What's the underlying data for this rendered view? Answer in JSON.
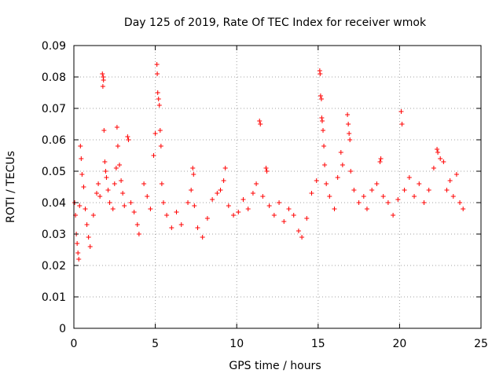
{
  "chart_data": {
    "type": "scatter",
    "title": "Day 125 of 2019, Rate Of TEC Index for receiver wmok",
    "xlabel": "GPS time / hours",
    "ylabel": "ROTI / TECUs",
    "xlim": [
      0,
      25
    ],
    "ylim": [
      0,
      0.09
    ],
    "xticks": [
      0,
      5,
      10,
      15,
      20,
      25
    ],
    "yticks": [
      0,
      0.01,
      0.02,
      0.03,
      0.04,
      0.05,
      0.06,
      0.07,
      0.08,
      0.09
    ],
    "xtick_labels": [
      "0",
      "5",
      "10",
      "15",
      "20",
      "25"
    ],
    "ytick_labels": [
      "0",
      "0.01",
      "0.02",
      "0.03",
      "0.04",
      "0.05",
      "0.06",
      "0.07",
      "0.08",
      "0.09"
    ],
    "grid": true,
    "marker": "plus",
    "marker_color": "#ff0000",
    "series": [
      {
        "name": "ROTI",
        "points": [
          [
            0.05,
            0.04
          ],
          [
            0.1,
            0.036
          ],
          [
            0.15,
            0.03
          ],
          [
            0.2,
            0.027
          ],
          [
            0.25,
            0.024
          ],
          [
            0.3,
            0.022
          ],
          [
            0.35,
            0.039
          ],
          [
            0.4,
            0.058
          ],
          [
            0.45,
            0.054
          ],
          [
            0.5,
            0.049
          ],
          [
            0.6,
            0.045
          ],
          [
            0.7,
            0.038
          ],
          [
            0.8,
            0.033
          ],
          [
            0.9,
            0.029
          ],
          [
            1.0,
            0.026
          ],
          [
            1.2,
            0.036
          ],
          [
            1.4,
            0.043
          ],
          [
            1.5,
            0.046
          ],
          [
            1.6,
            0.042
          ],
          [
            1.75,
            0.081
          ],
          [
            1.8,
            0.08
          ],
          [
            1.82,
            0.079
          ],
          [
            1.78,
            0.077
          ],
          [
            1.85,
            0.063
          ],
          [
            1.9,
            0.053
          ],
          [
            1.95,
            0.05
          ],
          [
            2.0,
            0.048
          ],
          [
            2.1,
            0.044
          ],
          [
            2.2,
            0.04
          ],
          [
            2.4,
            0.038
          ],
          [
            2.5,
            0.046
          ],
          [
            2.6,
            0.051
          ],
          [
            2.65,
            0.064
          ],
          [
            2.7,
            0.058
          ],
          [
            2.8,
            0.052
          ],
          [
            2.9,
            0.047
          ],
          [
            3.0,
            0.043
          ],
          [
            3.1,
            0.039
          ],
          [
            3.3,
            0.061
          ],
          [
            3.35,
            0.06
          ],
          [
            3.5,
            0.04
          ],
          [
            3.7,
            0.037
          ],
          [
            3.9,
            0.033
          ],
          [
            4.0,
            0.03
          ],
          [
            4.3,
            0.046
          ],
          [
            4.5,
            0.042
          ],
          [
            4.7,
            0.038
          ],
          [
            4.9,
            0.055
          ],
          [
            5.0,
            0.062
          ],
          [
            5.1,
            0.084
          ],
          [
            5.12,
            0.081
          ],
          [
            5.15,
            0.075
          ],
          [
            5.2,
            0.073
          ],
          [
            5.25,
            0.071
          ],
          [
            5.3,
            0.063
          ],
          [
            5.35,
            0.058
          ],
          [
            5.4,
            0.046
          ],
          [
            5.5,
            0.04
          ],
          [
            5.7,
            0.036
          ],
          [
            6.0,
            0.032
          ],
          [
            6.3,
            0.037
          ],
          [
            6.6,
            0.033
          ],
          [
            7.0,
            0.04
          ],
          [
            7.2,
            0.044
          ],
          [
            7.3,
            0.051
          ],
          [
            7.35,
            0.049
          ],
          [
            7.4,
            0.039
          ],
          [
            7.6,
            0.032
          ],
          [
            7.9,
            0.029
          ],
          [
            8.2,
            0.035
          ],
          [
            8.5,
            0.041
          ],
          [
            8.8,
            0.043
          ],
          [
            9.0,
            0.044
          ],
          [
            9.2,
            0.047
          ],
          [
            9.3,
            0.051
          ],
          [
            9.5,
            0.039
          ],
          [
            9.8,
            0.036
          ],
          [
            10.1,
            0.037
          ],
          [
            10.4,
            0.041
          ],
          [
            10.7,
            0.038
          ],
          [
            11.0,
            0.043
          ],
          [
            11.2,
            0.046
          ],
          [
            11.4,
            0.066
          ],
          [
            11.45,
            0.065
          ],
          [
            11.6,
            0.042
          ],
          [
            11.8,
            0.051
          ],
          [
            11.85,
            0.05
          ],
          [
            12.0,
            0.039
          ],
          [
            12.3,
            0.036
          ],
          [
            12.6,
            0.04
          ],
          [
            12.9,
            0.034
          ],
          [
            13.2,
            0.038
          ],
          [
            13.5,
            0.036
          ],
          [
            13.8,
            0.031
          ],
          [
            14.0,
            0.029
          ],
          [
            14.3,
            0.035
          ],
          [
            14.6,
            0.043
          ],
          [
            14.9,
            0.047
          ],
          [
            15.1,
            0.082
          ],
          [
            15.12,
            0.081
          ],
          [
            15.15,
            0.074
          ],
          [
            15.2,
            0.073
          ],
          [
            15.22,
            0.067
          ],
          [
            15.25,
            0.066
          ],
          [
            15.3,
            0.063
          ],
          [
            15.35,
            0.058
          ],
          [
            15.4,
            0.052
          ],
          [
            15.5,
            0.046
          ],
          [
            15.7,
            0.042
          ],
          [
            16.0,
            0.038
          ],
          [
            16.2,
            0.048
          ],
          [
            16.4,
            0.056
          ],
          [
            16.5,
            0.052
          ],
          [
            16.8,
            0.068
          ],
          [
            16.85,
            0.065
          ],
          [
            16.9,
            0.062
          ],
          [
            16.95,
            0.06
          ],
          [
            17.0,
            0.05
          ],
          [
            17.2,
            0.044
          ],
          [
            17.5,
            0.04
          ],
          [
            17.8,
            0.042
          ],
          [
            18.0,
            0.038
          ],
          [
            18.3,
            0.044
          ],
          [
            18.6,
            0.046
          ],
          [
            18.8,
            0.053
          ],
          [
            18.85,
            0.054
          ],
          [
            19.0,
            0.042
          ],
          [
            19.3,
            0.04
          ],
          [
            19.6,
            0.036
          ],
          [
            19.9,
            0.041
          ],
          [
            20.1,
            0.069
          ],
          [
            20.15,
            0.065
          ],
          [
            20.3,
            0.044
          ],
          [
            20.6,
            0.048
          ],
          [
            20.9,
            0.042
          ],
          [
            21.2,
            0.046
          ],
          [
            21.5,
            0.04
          ],
          [
            21.8,
            0.044
          ],
          [
            22.1,
            0.051
          ],
          [
            22.3,
            0.057
          ],
          [
            22.35,
            0.056
          ],
          [
            22.5,
            0.054
          ],
          [
            22.7,
            0.053
          ],
          [
            22.9,
            0.044
          ],
          [
            23.1,
            0.047
          ],
          [
            23.3,
            0.042
          ],
          [
            23.5,
            0.049
          ],
          [
            23.7,
            0.04
          ],
          [
            23.9,
            0.038
          ]
        ]
      }
    ]
  }
}
